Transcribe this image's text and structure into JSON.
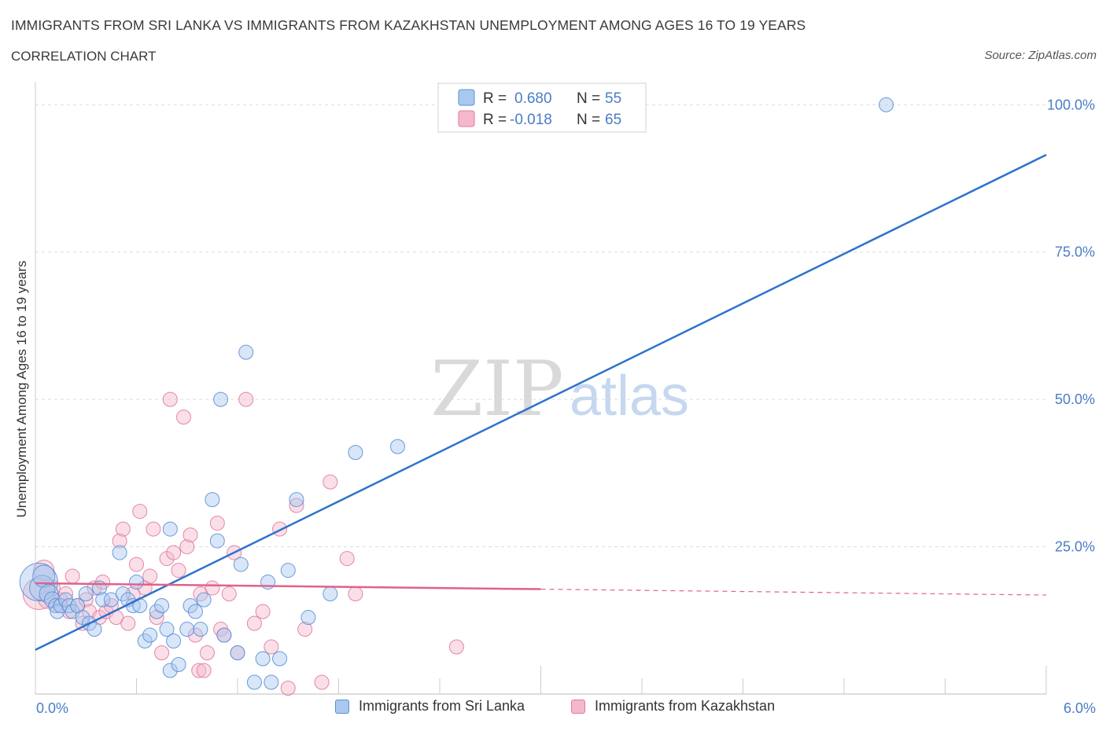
{
  "header": {
    "title": "IMMIGRANTS FROM SRI LANKA VS IMMIGRANTS FROM KAZAKHSTAN UNEMPLOYMENT AMONG AGES 16 TO 19 YEARS",
    "subtitle": "CORRELATION CHART",
    "source": "Source: ZipAtlas.com"
  },
  "legend_top": {
    "rows": [
      {
        "r_label": "R =",
        "r_value": "0.680",
        "n_label": "N =",
        "n_value": "55"
      },
      {
        "r_label": "R =",
        "r_value": "-0.018",
        "n_label": "N =",
        "n_value": "65"
      }
    ]
  },
  "colors": {
    "blue_fill": "#a9c8f0",
    "blue_stroke": "#5b8fd6",
    "blue_line": "#2e72cc",
    "pink_fill": "#f5b8cb",
    "pink_stroke": "#e07a9c",
    "pink_line": "#e0628c",
    "tick_text": "#4a7cc7",
    "grid": "#dddddd"
  },
  "watermark": {
    "zip": "ZIP",
    "atlas": "atlas"
  },
  "chart_data": {
    "type": "scatter",
    "title": "IMMIGRANTS FROM SRI LANKA VS IMMIGRANTS FROM KAZAKHSTAN UNEMPLOYMENT AMONG AGES 16 TO 19 YEARS",
    "xlabel": "",
    "ylabel": "Unemployment Among Ages 16 to 19 years",
    "xlim": [
      0,
      6
    ],
    "ylim": [
      0,
      100
    ],
    "x_tick_labels": [
      "0.0%",
      "6.0%"
    ],
    "y_ticks": [
      25,
      50,
      75,
      100
    ],
    "y_tick_labels": [
      "25.0%",
      "50.0%",
      "75.0%",
      "100.0%"
    ],
    "legend": [
      "Immigrants from Sri Lanka",
      "Immigrants from Kazakhstan"
    ],
    "series": [
      {
        "name": "Immigrants from Sri Lanka",
        "R": 0.68,
        "N": 55,
        "trend": {
          "x0": 0,
          "y0": 7.5,
          "x1": 6,
          "y1": 91.5
        },
        "points": [
          [
            0.02,
            19,
            24
          ],
          [
            0.04,
            18,
            16
          ],
          [
            0.05,
            20,
            14
          ],
          [
            0.08,
            17,
            12
          ],
          [
            0.1,
            16,
            10
          ],
          [
            0.12,
            15,
            9
          ],
          [
            0.13,
            14,
            9
          ],
          [
            0.15,
            15,
            9
          ],
          [
            0.18,
            16,
            9
          ],
          [
            0.2,
            15,
            9
          ],
          [
            0.22,
            14,
            9
          ],
          [
            0.25,
            15,
            9
          ],
          [
            0.28,
            13,
            9
          ],
          [
            0.3,
            17,
            9
          ],
          [
            0.32,
            12,
            9
          ],
          [
            0.35,
            11,
            9
          ],
          [
            0.38,
            18,
            9
          ],
          [
            0.4,
            16,
            9
          ],
          [
            0.45,
            16,
            9
          ],
          [
            0.5,
            24,
            9
          ],
          [
            0.52,
            17,
            9
          ],
          [
            0.55,
            16,
            9
          ],
          [
            0.58,
            15,
            9
          ],
          [
            0.6,
            19,
            9
          ],
          [
            0.62,
            15,
            9
          ],
          [
            0.65,
            9,
            9
          ],
          [
            0.68,
            10,
            9
          ],
          [
            0.72,
            14,
            9
          ],
          [
            0.75,
            15,
            9
          ],
          [
            0.78,
            11,
            9
          ],
          [
            0.8,
            28,
            9
          ],
          [
            0.82,
            9,
            9
          ],
          [
            0.8,
            4,
            9
          ],
          [
            0.85,
            5,
            9
          ],
          [
            0.9,
            11,
            9
          ],
          [
            0.92,
            15,
            9
          ],
          [
            0.95,
            14,
            9
          ],
          [
            0.98,
            11,
            9
          ],
          [
            1.0,
            16,
            9
          ],
          [
            1.05,
            33,
            9
          ],
          [
            1.08,
            26,
            9
          ],
          [
            1.1,
            50,
            9
          ],
          [
            1.12,
            10,
            9
          ],
          [
            1.2,
            7,
            9
          ],
          [
            1.22,
            22,
            9
          ],
          [
            1.25,
            58,
            9
          ],
          [
            1.3,
            2,
            9
          ],
          [
            1.35,
            6,
            9
          ],
          [
            1.38,
            19,
            9
          ],
          [
            1.4,
            2,
            9
          ],
          [
            1.45,
            6,
            9
          ],
          [
            1.5,
            21,
            9
          ],
          [
            1.55,
            33,
            9
          ],
          [
            1.62,
            13,
            9
          ],
          [
            1.75,
            17,
            9
          ],
          [
            1.9,
            41,
            9
          ],
          [
            2.15,
            42,
            9
          ],
          [
            5.05,
            100,
            9
          ]
        ]
      },
      {
        "name": "Immigrants from Kazakhstan",
        "R": -0.018,
        "N": 65,
        "trend": {
          "x0": 0,
          "y0": 18.8,
          "x1": 6,
          "y1": 16.8,
          "solid_to_x": 3.0
        },
        "points": [
          [
            0.02,
            17,
            20
          ],
          [
            0.05,
            21,
            13
          ],
          [
            0.07,
            16,
            11
          ],
          [
            0.1,
            18,
            10
          ],
          [
            0.12,
            15,
            9
          ],
          [
            0.15,
            16,
            9
          ],
          [
            0.18,
            17,
            9
          ],
          [
            0.2,
            14,
            9
          ],
          [
            0.22,
            20,
            9
          ],
          [
            0.25,
            15,
            9
          ],
          [
            0.28,
            12,
            9
          ],
          [
            0.3,
            16,
            9
          ],
          [
            0.32,
            14,
            9
          ],
          [
            0.35,
            18,
            9
          ],
          [
            0.38,
            13,
            9
          ],
          [
            0.4,
            19,
            9
          ],
          [
            0.42,
            14,
            9
          ],
          [
            0.45,
            15,
            9
          ],
          [
            0.48,
            13,
            9
          ],
          [
            0.5,
            26,
            9
          ],
          [
            0.52,
            28,
            9
          ],
          [
            0.55,
            12,
            9
          ],
          [
            0.58,
            17,
            9
          ],
          [
            0.6,
            22,
            9
          ],
          [
            0.62,
            31,
            9
          ],
          [
            0.65,
            18,
            9
          ],
          [
            0.68,
            20,
            9
          ],
          [
            0.7,
            28,
            9
          ],
          [
            0.72,
            13,
            9
          ],
          [
            0.75,
            7,
            9
          ],
          [
            0.78,
            23,
            9
          ],
          [
            0.8,
            50,
            9
          ],
          [
            0.82,
            24,
            9
          ],
          [
            0.85,
            21,
            9
          ],
          [
            0.88,
            47,
            9
          ],
          [
            0.9,
            25,
            9
          ],
          [
            0.92,
            27,
            9
          ],
          [
            0.95,
            10,
            9
          ],
          [
            0.97,
            4,
            9
          ],
          [
            0.98,
            17,
            9
          ],
          [
            1.0,
            4,
            9
          ],
          [
            1.02,
            7,
            9
          ],
          [
            1.05,
            18,
            9
          ],
          [
            1.08,
            29,
            9
          ],
          [
            1.1,
            11,
            9
          ],
          [
            1.12,
            10,
            9
          ],
          [
            1.15,
            17,
            9
          ],
          [
            1.18,
            24,
            9
          ],
          [
            1.2,
            7,
            9
          ],
          [
            1.25,
            50,
            9
          ],
          [
            1.3,
            12,
            9
          ],
          [
            1.35,
            14,
            9
          ],
          [
            1.4,
            8,
            9
          ],
          [
            1.45,
            28,
            9
          ],
          [
            1.5,
            1,
            9
          ],
          [
            1.55,
            32,
            9
          ],
          [
            1.6,
            11,
            9
          ],
          [
            1.7,
            2,
            9
          ],
          [
            1.75,
            36,
            9
          ],
          [
            1.85,
            23,
            9
          ],
          [
            1.9,
            17,
            9
          ],
          [
            2.5,
            8,
            9
          ]
        ]
      }
    ]
  }
}
